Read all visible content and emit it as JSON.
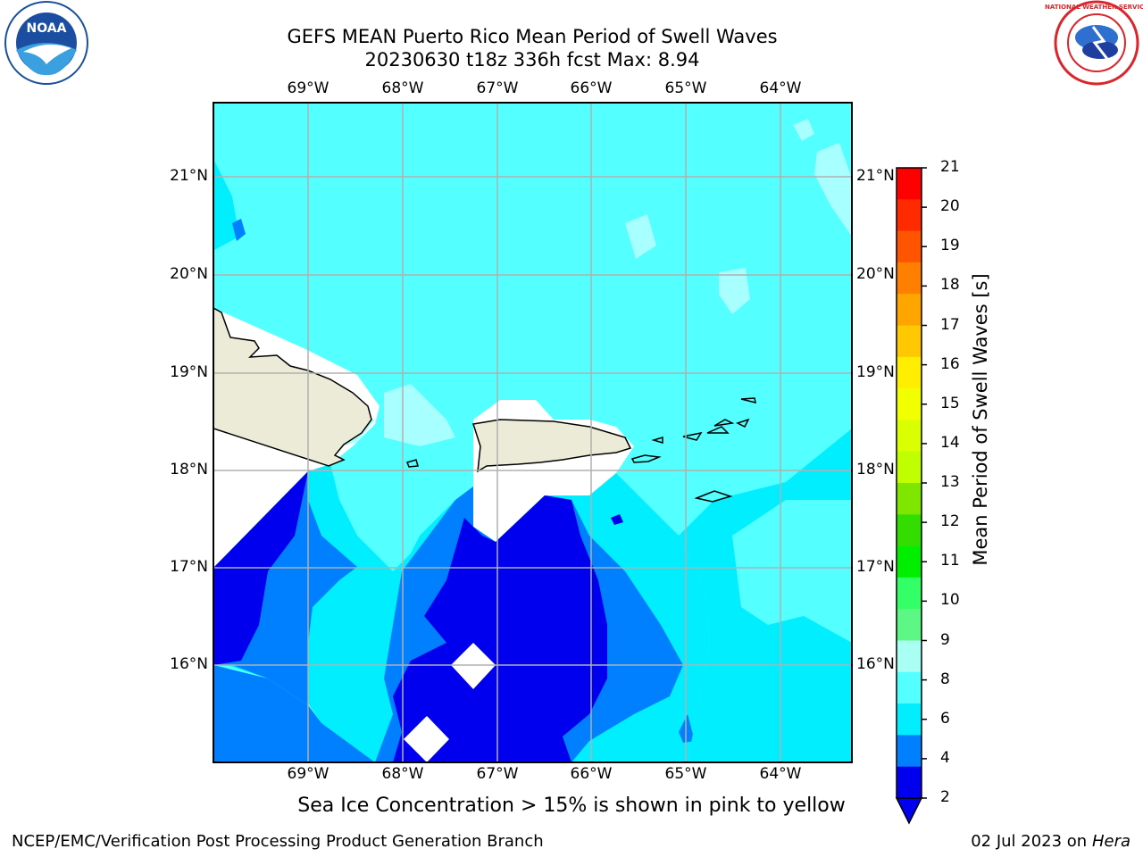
{
  "title_line1": "GEFS MEAN Puerto Rico Mean Period of Swell Waves",
  "title_line2": "20230630 t18z 336h fcst   Max: 8.94",
  "subtitle": "Sea Ice Concentration > 15% is shown in pink to yellow",
  "footer_left": "NCEP/EMC/Verification Post Processing Product Generation Branch",
  "footer_date": "02 Jul 2023 on ",
  "footer_machine": "Hera",
  "lon_labels": [
    "69°W",
    "68°W",
    "67°W",
    "66°W",
    "65°W",
    "64°W"
  ],
  "lat_labels": [
    "21°N",
    "20°N",
    "19°N",
    "18°N",
    "17°N",
    "16°N"
  ],
  "colorbar": {
    "label": "Mean Period of Swell Waves [s]",
    "ticks": [
      "21",
      "20",
      "19",
      "18",
      "17",
      "16",
      "15",
      "14",
      "13",
      "12",
      "11",
      "10",
      "9",
      "8",
      "6",
      "4",
      "2"
    ],
    "colors_top_to_bottom": [
      "#ff0000",
      "#ff2a00",
      "#ff5500",
      "#ff8000",
      "#ffa500",
      "#ffc800",
      "#ffee00",
      "#f2ff00",
      "#d9ff00",
      "#c0ff00",
      "#7fe600",
      "#33dd00",
      "#00ee00",
      "#33ff66",
      "#5cf784",
      "#aafff5",
      "#54ffff",
      "#00eeff",
      "#007fff",
      "#0000ee"
    ]
  },
  "colors": {
    "land": "#ecebd8",
    "masked": "#ffffff",
    "c2_4": "#0000ee",
    "c4_6": "#0080ff",
    "c6_8": "#00eeff",
    "c8_9": "#54ffff",
    "c9_10": "#a8ffff",
    "grid": "#b0b0b0"
  },
  "logos": {
    "left": {
      "name": "NOAA",
      "text": "NOAA"
    },
    "right": {
      "name": "National Weather Service",
      "text": "NATIONAL WEATHER SERVICE"
    }
  }
}
